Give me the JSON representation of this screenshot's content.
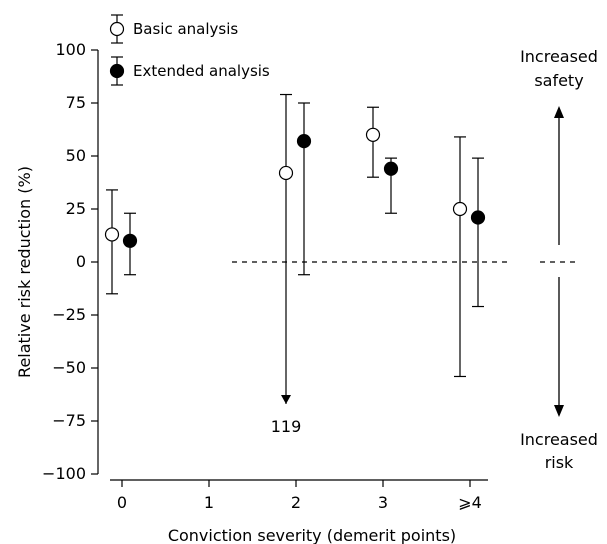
{
  "chart_data": {
    "type": "scatter",
    "subtype": "point-with-error-bars",
    "xlabel": "Conviction severity (demerit points)",
    "ylabel": "Relative risk reduction (%)",
    "categories": [
      "0",
      "1",
      "2",
      "3",
      "⩾4"
    ],
    "ylim": [
      -100,
      100
    ],
    "yticks": [
      -100,
      -75,
      -50,
      -25,
      0,
      25,
      50,
      75,
      100
    ],
    "yticklabels": [
      "−100",
      "−75",
      "−50",
      "−25",
      "0",
      "25",
      "50",
      "75",
      "100"
    ],
    "grid": false,
    "legend_position": "top-left",
    "reference_line": {
      "y": 0,
      "style": "dashed",
      "x_from": "1"
    },
    "series": [
      {
        "name": "Basic analysis",
        "marker": "open-circle",
        "points": [
          {
            "category": "0",
            "y": 13,
            "low": -15,
            "high": 34
          },
          {
            "category": "2",
            "y": 42,
            "low": -67,
            "high": 79,
            "low_clipped": true,
            "low_actual": -119
          },
          {
            "category": "3",
            "y": 60,
            "low": 40,
            "high": 73
          },
          {
            "category": "⩾4",
            "y": 25,
            "low": -54,
            "high": 59
          }
        ]
      },
      {
        "name": "Extended analysis",
        "marker": "filled-circle",
        "points": [
          {
            "category": "0",
            "y": 10,
            "low": -6,
            "high": 23
          },
          {
            "category": "2",
            "y": 57,
            "low": -6,
            "high": 75
          },
          {
            "category": "3",
            "y": 44,
            "low": 23,
            "high": 49
          },
          {
            "category": "⩾4",
            "y": 21,
            "low": -21,
            "high": 49
          }
        ]
      }
    ],
    "annotations": {
      "clipped_value": "119",
      "increased_safety": [
        "Increased",
        "safety"
      ],
      "increased_risk": [
        "Increased",
        "risk"
      ]
    }
  }
}
